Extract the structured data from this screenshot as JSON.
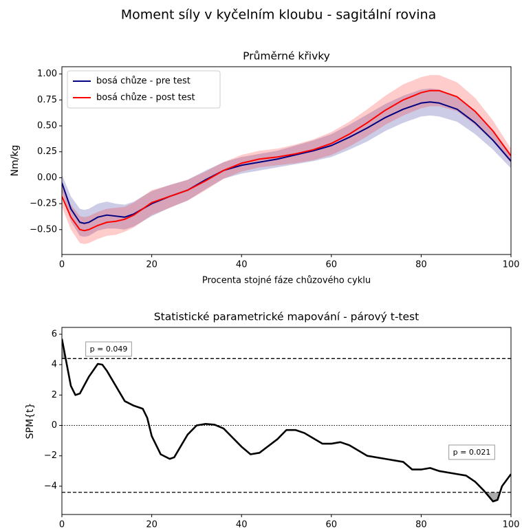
{
  "suptitle": "Moment síly v kyčelním kloubu - sagitální rovina",
  "chart_data": [
    {
      "type": "line",
      "title": "Průměrné křivky",
      "xlabel": "Procenta stojné fáze chůzového cyklu",
      "ylabel": "Nm/kg",
      "x": [
        0,
        2,
        4,
        5,
        6,
        8,
        10,
        12,
        14,
        16,
        18,
        20,
        24,
        28,
        32,
        36,
        40,
        44,
        48,
        52,
        56,
        60,
        64,
        68,
        72,
        76,
        80,
        82,
        84,
        88,
        92,
        96,
        100
      ],
      "series": [
        {
          "name": "bosá chůze - pre test",
          "color": "#000080",
          "values": [
            -0.05,
            -0.3,
            -0.43,
            -0.44,
            -0.43,
            -0.38,
            -0.36,
            -0.37,
            -0.38,
            -0.35,
            -0.3,
            -0.25,
            -0.18,
            -0.12,
            -0.02,
            0.07,
            0.12,
            0.15,
            0.18,
            0.22,
            0.26,
            0.31,
            0.39,
            0.48,
            0.58,
            0.66,
            0.72,
            0.73,
            0.72,
            0.66,
            0.53,
            0.36,
            0.16
          ],
          "error": [
            0.08,
            0.12,
            0.13,
            0.13,
            0.13,
            0.13,
            0.13,
            0.12,
            0.12,
            0.12,
            0.12,
            0.12,
            0.11,
            0.1,
            0.09,
            0.08,
            0.08,
            0.08,
            0.08,
            0.09,
            0.1,
            0.11,
            0.12,
            0.13,
            0.13,
            0.13,
            0.13,
            0.13,
            0.13,
            0.12,
            0.11,
            0.09,
            0.07
          ]
        },
        {
          "name": "bosá chůze - post test",
          "color": "#ff0000",
          "values": [
            -0.18,
            -0.38,
            -0.5,
            -0.51,
            -0.5,
            -0.46,
            -0.43,
            -0.42,
            -0.4,
            -0.36,
            -0.3,
            -0.24,
            -0.18,
            -0.12,
            -0.03,
            0.07,
            0.14,
            0.18,
            0.2,
            0.23,
            0.27,
            0.33,
            0.42,
            0.53,
            0.65,
            0.75,
            0.82,
            0.84,
            0.84,
            0.78,
            0.64,
            0.45,
            0.21
          ],
          "error": [
            0.1,
            0.12,
            0.13,
            0.13,
            0.13,
            0.13,
            0.13,
            0.13,
            0.12,
            0.12,
            0.12,
            0.12,
            0.11,
            0.1,
            0.09,
            0.08,
            0.08,
            0.08,
            0.08,
            0.09,
            0.1,
            0.11,
            0.12,
            0.13,
            0.14,
            0.15,
            0.15,
            0.15,
            0.15,
            0.14,
            0.13,
            0.1,
            0.07
          ]
        }
      ],
      "xlim": [
        0,
        100
      ],
      "xticks": [
        0,
        20,
        40,
        60,
        80,
        100
      ],
      "ylim": [
        -0.74,
        1.07
      ],
      "yticks": [
        {
          "value": -0.5,
          "label": "−0.50"
        },
        {
          "value": -0.25,
          "label": "−0.25"
        },
        {
          "value": 0,
          "label": "0.00"
        },
        {
          "value": 0.25,
          "label": "0.25"
        },
        {
          "value": 0.5,
          "label": "0.50"
        },
        {
          "value": 0.75,
          "label": "0.75"
        },
        {
          "value": 1,
          "label": "1.00"
        }
      ],
      "legend": "upper left",
      "band_opacity": 0.2
    },
    {
      "type": "line",
      "title": "Statistické parametrické mapování - párový t-test",
      "ylabel": "SPM{t}",
      "x": [
        0,
        2,
        3,
        4,
        6,
        8,
        9,
        10,
        12,
        14,
        16,
        18,
        19,
        20,
        22,
        24,
        25,
        28,
        30,
        32,
        34,
        36,
        40,
        42,
        44,
        48,
        50,
        52,
        54,
        58,
        60,
        62,
        64,
        68,
        72,
        76,
        78,
        80,
        82,
        84,
        88,
        90,
        92,
        94,
        96,
        97,
        98,
        100
      ],
      "series": [
        {
          "color": "#000000",
          "values": [
            5.7,
            2.6,
            2.0,
            2.1,
            3.2,
            4.05,
            4.0,
            3.6,
            2.6,
            1.6,
            1.3,
            1.1,
            0.5,
            -0.7,
            -1.9,
            -2.2,
            -2.1,
            -0.6,
            0.0,
            0.1,
            0.05,
            -0.2,
            -1.4,
            -1.9,
            -1.8,
            -0.9,
            -0.3,
            -0.3,
            -0.5,
            -1.2,
            -1.2,
            -1.1,
            -1.3,
            -2.0,
            -2.2,
            -2.4,
            -2.9,
            -2.9,
            -2.8,
            -3.0,
            -3.2,
            -3.3,
            -3.7,
            -4.3,
            -5.0,
            -4.9,
            -4.0,
            -3.2
          ]
        }
      ],
      "xlim": [
        0,
        100
      ],
      "xticks": [
        0,
        20,
        40,
        60,
        80,
        100
      ],
      "ylim": [
        -5.86,
        6.45
      ],
      "yticks": [
        {
          "value": -4,
          "label": "−4"
        },
        {
          "value": -2,
          "label": "−2"
        },
        0,
        2,
        4,
        6
      ],
      "thresholds": [
        4.4,
        -4.4
      ],
      "reference_line": 0,
      "shade_color": "#aaaaaa",
      "annotations": [
        "p = 0.049",
        "p = 0.021"
      ]
    }
  ]
}
